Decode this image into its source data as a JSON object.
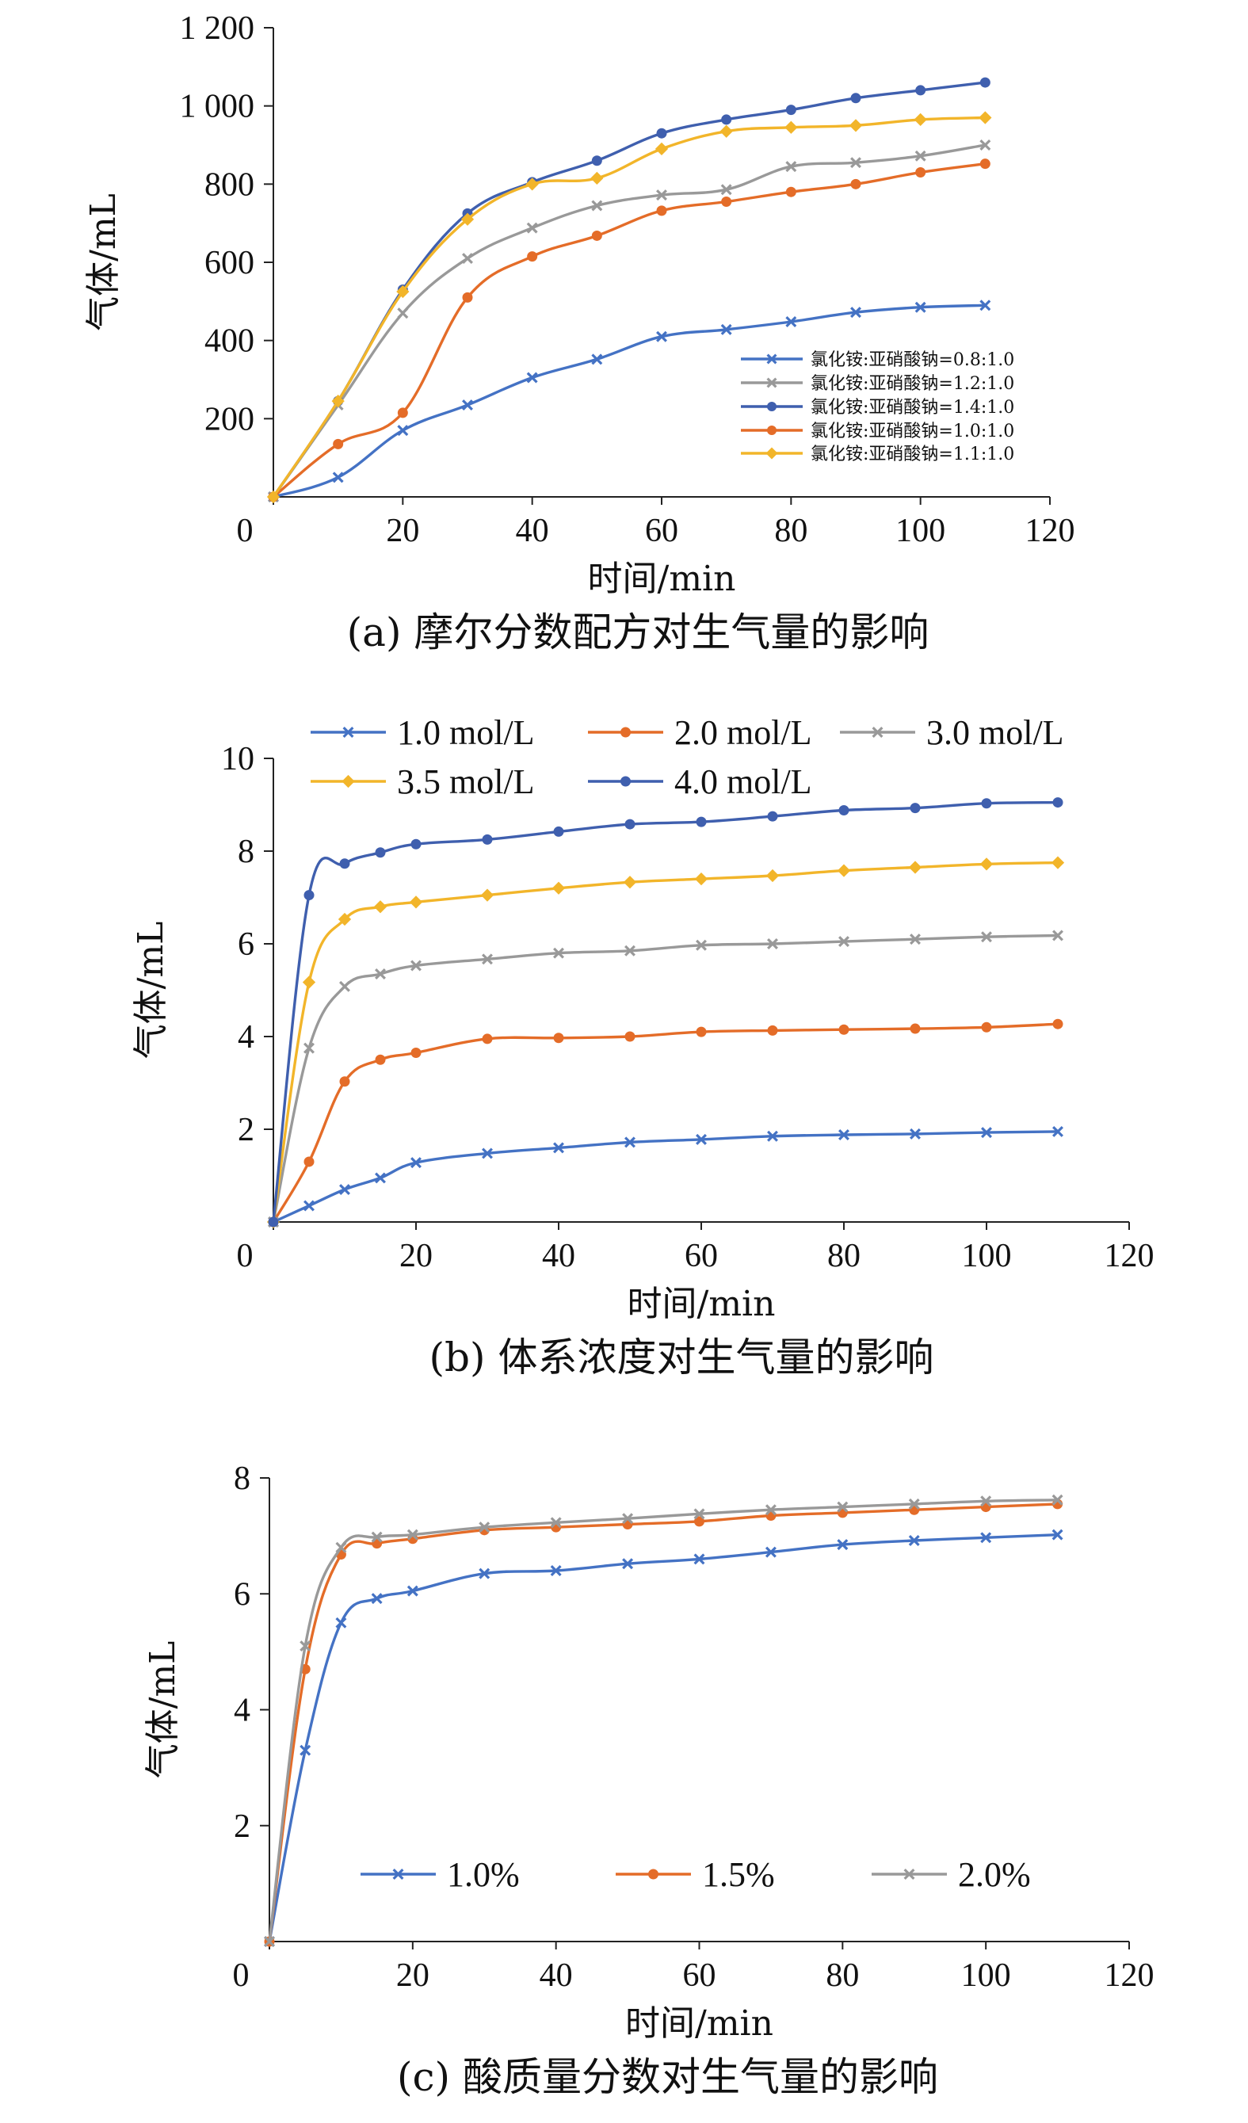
{
  "colors": {
    "blue": "#4472C4",
    "orange": "#E46C28",
    "gray": "#999999",
    "darkblue": "#3F5FAE",
    "gold": "#F2B52A",
    "axis": "#222222"
  },
  "chart_data": [
    {
      "type": "line",
      "caption": "(a) 摩尔分数配方对生气量的影响",
      "xlabel": "时间/min",
      "ylabel": "气体/mL",
      "xlim": [
        0,
        120
      ],
      "ylim": [
        0,
        1200
      ],
      "xticks": [
        0,
        20,
        40,
        60,
        80,
        100,
        120
      ],
      "yticks": [
        200,
        400,
        600,
        800,
        1000,
        1200
      ],
      "ytick_labels": [
        "200",
        "400",
        "600",
        "800",
        "1 000",
        "1 200"
      ],
      "x0_label": "0",
      "legend_position": "bottom-right",
      "x": [
        0,
        10,
        20,
        30,
        40,
        50,
        60,
        70,
        80,
        90,
        100,
        110
      ],
      "series": [
        {
          "name": "氯化铵:亚硝酸钠=0.8:1.0",
          "color": "#4472C4",
          "marker": "x",
          "values": [
            0,
            50,
            170,
            235,
            305,
            352,
            410,
            428,
            448,
            472,
            485,
            490
          ]
        },
        {
          "name": "氯化铵:亚硝酸钠=1.2:1.0",
          "color": "#999999",
          "marker": "x",
          "values": [
            0,
            235,
            470,
            610,
            688,
            745,
            772,
            786,
            845,
            855,
            872,
            900
          ]
        },
        {
          "name": "氯化铵:亚硝酸钠=1.4:1.0",
          "color": "#3F5FAE",
          "marker": "o",
          "values": [
            0,
            245,
            530,
            725,
            805,
            860,
            930,
            965,
            990,
            1020,
            1040,
            1060
          ]
        },
        {
          "name": "氯化铵:亚硝酸钠=1.0:1.0",
          "color": "#E46C28",
          "marker": "o",
          "values": [
            0,
            135,
            215,
            510,
            615,
            668,
            732,
            755,
            780,
            800,
            830,
            852
          ]
        },
        {
          "name": "氯化铵:亚硝酸钠=1.1:1.0",
          "color": "#F2B52A",
          "marker": "d",
          "values": [
            0,
            245,
            525,
            710,
            800,
            815,
            890,
            935,
            945,
            950,
            965,
            970
          ]
        }
      ]
    },
    {
      "type": "line",
      "caption": "(b) 体系浓度对生气量的影响",
      "xlabel": "时间/min",
      "ylabel": "气体/mL",
      "xlim": [
        0,
        120
      ],
      "ylim": [
        0,
        10
      ],
      "xticks": [
        0,
        20,
        40,
        60,
        80,
        100,
        120
      ],
      "yticks": [
        2,
        4,
        6,
        8,
        10
      ],
      "ytick_labels": [
        "2",
        "4",
        "6",
        "8",
        "10"
      ],
      "x0_label": "0",
      "legend_position": "top",
      "x": [
        0,
        5,
        10,
        15,
        20,
        30,
        40,
        50,
        60,
        70,
        80,
        90,
        100,
        110
      ],
      "series": [
        {
          "name": "1.0 mol/L",
          "color": "#4472C4",
          "marker": "x",
          "values": [
            0,
            0.35,
            0.7,
            0.95,
            1.28,
            1.48,
            1.6,
            1.72,
            1.78,
            1.85,
            1.88,
            1.9,
            1.93,
            1.95
          ]
        },
        {
          "name": "2.0 mol/L",
          "color": "#E46C28",
          "marker": "o",
          "values": [
            0,
            1.3,
            3.03,
            3.5,
            3.65,
            3.95,
            3.97,
            4.0,
            4.1,
            4.13,
            4.15,
            4.17,
            4.2,
            4.27
          ]
        },
        {
          "name": "3.0 mol/L",
          "color": "#999999",
          "marker": "x",
          "values": [
            0,
            3.75,
            5.08,
            5.35,
            5.53,
            5.67,
            5.8,
            5.85,
            5.97,
            6.0,
            6.05,
            6.1,
            6.15,
            6.18
          ]
        },
        {
          "name": "3.5 mol/L",
          "color": "#F2B52A",
          "marker": "d",
          "values": [
            0,
            5.17,
            6.53,
            6.8,
            6.9,
            7.05,
            7.2,
            7.33,
            7.4,
            7.47,
            7.58,
            7.65,
            7.72,
            7.75
          ]
        },
        {
          "name": "4.0 mol/L",
          "color": "#3F5FAE",
          "marker": "o",
          "values": [
            0,
            7.05,
            7.73,
            7.97,
            8.15,
            8.25,
            8.42,
            8.58,
            8.63,
            8.75,
            8.88,
            8.93,
            9.03,
            9.05
          ]
        }
      ]
    },
    {
      "type": "line",
      "caption": "(c) 酸质量分数对生气量的影响",
      "xlabel": "时间/min",
      "ylabel": "气体/mL",
      "xlim": [
        0,
        120
      ],
      "ylim": [
        0,
        8
      ],
      "xticks": [
        0,
        20,
        40,
        60,
        80,
        100,
        120
      ],
      "yticks": [
        2,
        4,
        6,
        8
      ],
      "ytick_labels": [
        "2",
        "4",
        "6",
        "8"
      ],
      "x0_label": "0",
      "legend_position": "bottom",
      "x": [
        0,
        5,
        10,
        15,
        20,
        30,
        40,
        50,
        60,
        70,
        80,
        90,
        100,
        110
      ],
      "series": [
        {
          "name": "1.0%",
          "color": "#4472C4",
          "marker": "x",
          "values": [
            0,
            3.3,
            5.5,
            5.92,
            6.05,
            6.35,
            6.4,
            6.52,
            6.6,
            6.72,
            6.85,
            6.92,
            6.97,
            7.02
          ]
        },
        {
          "name": "1.5%",
          "color": "#E46C28",
          "marker": "o",
          "values": [
            0,
            4.7,
            6.68,
            6.87,
            6.95,
            7.1,
            7.15,
            7.2,
            7.25,
            7.35,
            7.4,
            7.45,
            7.5,
            7.55
          ]
        },
        {
          "name": "2.0%",
          "color": "#999999",
          "marker": "x",
          "values": [
            0,
            5.1,
            6.8,
            6.98,
            7.02,
            7.15,
            7.23,
            7.3,
            7.38,
            7.45,
            7.5,
            7.55,
            7.6,
            7.62
          ]
        }
      ]
    }
  ]
}
